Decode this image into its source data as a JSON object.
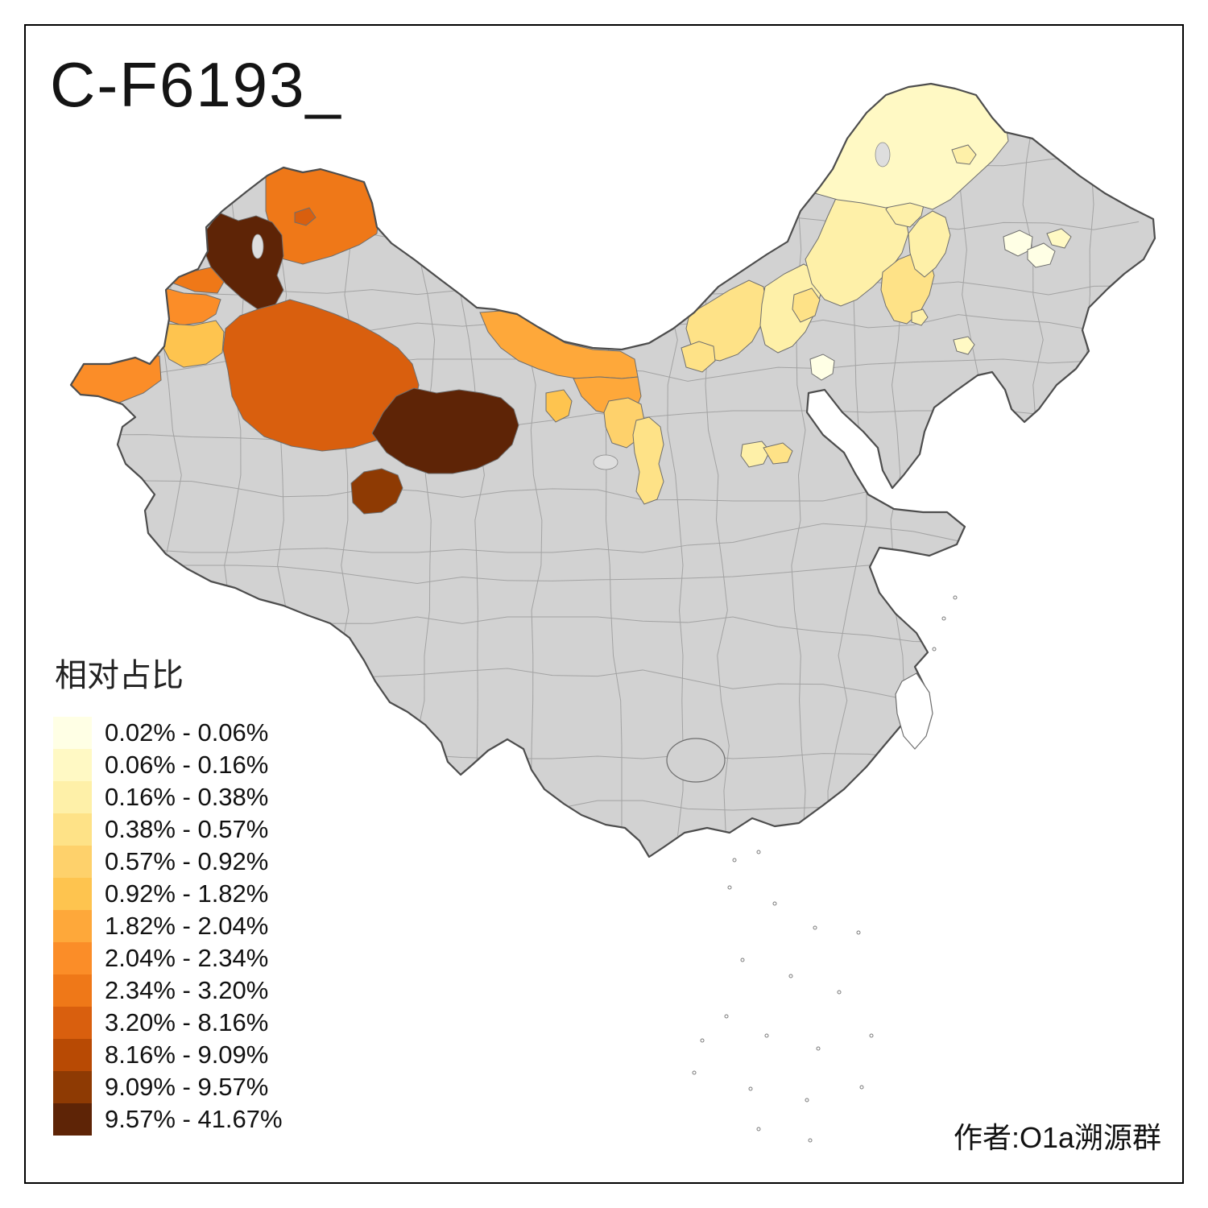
{
  "title": "C-F6193_",
  "attribution": "作者:O1a溯源群",
  "legend": {
    "title": "相对占比",
    "items": [
      {
        "label": "0.02% - 0.06%",
        "color": "#FFFFE5"
      },
      {
        "label": "0.06% - 0.16%",
        "color": "#FFF9C4"
      },
      {
        "label": "0.16% - 0.38%",
        "color": "#FEF0A8"
      },
      {
        "label": "0.38% - 0.57%",
        "color": "#FEE287"
      },
      {
        "label": "0.57% - 0.92%",
        "color": "#FED16B"
      },
      {
        "label": "0.92% - 1.82%",
        "color": "#FEC44F"
      },
      {
        "label": "1.82% - 2.04%",
        "color": "#FEA83A"
      },
      {
        "label": "2.04% - 2.34%",
        "color": "#FB8D28"
      },
      {
        "label": "2.34% - 3.20%",
        "color": "#EF7818"
      },
      {
        "label": "3.20% - 8.16%",
        "color": "#D95F0E"
      },
      {
        "label": "8.16% - 9.09%",
        "color": "#B84A04"
      },
      {
        "label": "9.09% - 9.57%",
        "color": "#8E3A03"
      },
      {
        "label": "9.57% - 41.67%",
        "color": "#5E2406"
      }
    ]
  },
  "map": {
    "land_fill": "#D2D2D2",
    "land_border": "#4D4D4D",
    "inner_border": "#A3A3A3",
    "region_border": "#6E6E6E",
    "lake_fill": "#DEDEDE",
    "island_fill": "#FFFFFF",
    "regions": [
      {
        "id": "n-xinjiang",
        "range": "2.34% - 3.20%",
        "color": "#EF7818"
      },
      {
        "id": "n-xinjiang-speck",
        "range": "3.20% - 8.16%",
        "color": "#D95F0E"
      },
      {
        "id": "ili-bortala",
        "range": "9.57% - 41.67%",
        "color": "#5E2406"
      },
      {
        "id": "ili-west",
        "range": "2.34% - 3.20%",
        "color": "#EF7818"
      },
      {
        "id": "ili-southwest",
        "range": "2.04% - 2.34%",
        "color": "#FB8D28"
      },
      {
        "id": "kashgar",
        "range": "0.92% - 1.82%",
        "color": "#FEC44F"
      },
      {
        "id": "far-west",
        "range": "2.04% - 2.34%",
        "color": "#FB8D28"
      },
      {
        "id": "aksu-area",
        "range": "3.20% - 8.16%",
        "color": "#D95F0E"
      },
      {
        "id": "se-xinjiang-dark",
        "range": "9.57% - 41.67%",
        "color": "#5E2406"
      },
      {
        "id": "s-dark-blob",
        "range": "9.09% - 9.57%",
        "color": "#8E3A03"
      },
      {
        "id": "w-gansu-strip",
        "range": "1.82% - 2.04%",
        "color": "#FEA83A"
      },
      {
        "id": "alxa",
        "range": "1.82% - 2.04%",
        "color": "#FEA83A"
      },
      {
        "id": "jiuquan-speck",
        "range": "0.92% - 1.82%",
        "color": "#FEC44F"
      },
      {
        "id": "wuwei-area",
        "range": "0.57% - 0.92%",
        "color": "#FED16B"
      },
      {
        "id": "ningxia-strip",
        "range": "0.38% - 0.57%",
        "color": "#FEE287"
      },
      {
        "id": "bayannur",
        "range": "0.38% - 0.57%",
        "color": "#FEE287"
      },
      {
        "id": "hohhot-area",
        "range": "0.16% - 0.38%",
        "color": "#FEF0A8"
      },
      {
        "id": "ulanqab-patch",
        "range": "0.38% - 0.57%",
        "color": "#FEE287"
      },
      {
        "id": "xilingol",
        "range": "0.16% - 0.38%",
        "color": "#FEF0A8"
      },
      {
        "id": "chifeng",
        "range": "0.38% - 0.57%",
        "color": "#FEE287"
      },
      {
        "id": "tongliao",
        "range": "0.16% - 0.38%",
        "color": "#FEF0A8"
      },
      {
        "id": "hinggan",
        "range": "0.16% - 0.38%",
        "color": "#FEF0A8"
      },
      {
        "id": "hulunbuir",
        "range": "0.06% - 0.16%",
        "color": "#FFF9C4"
      },
      {
        "id": "hulunbuir-speck",
        "range": "0.16% - 0.38%",
        "color": "#FEF0A8"
      },
      {
        "id": "jilin-w1",
        "range": "0.02% - 0.06%",
        "color": "#FFFFE5"
      },
      {
        "id": "jilin-w2",
        "range": "0.02% - 0.06%",
        "color": "#FFFFE5"
      },
      {
        "id": "jilin-e",
        "range": "0.06% - 0.16%",
        "color": "#FFF9C4"
      },
      {
        "id": "n-beijing-speck",
        "range": "0.02% - 0.06%",
        "color": "#FFFFE5"
      },
      {
        "id": "shanxi-speck-1",
        "range": "0.16% - 0.38%",
        "color": "#FEF0A8"
      },
      {
        "id": "shanxi-speck-2",
        "range": "0.38% - 0.57%",
        "color": "#FEE287"
      },
      {
        "id": "liaoning-speck-1",
        "range": "0.16% - 0.38%",
        "color": "#FEF0A8"
      },
      {
        "id": "liaoning-speck-2",
        "range": "0.06% - 0.16%",
        "color": "#FFF9C4"
      },
      {
        "id": "ordos-west",
        "range": "0.38% - 0.57%",
        "color": "#FEE287"
      }
    ]
  }
}
